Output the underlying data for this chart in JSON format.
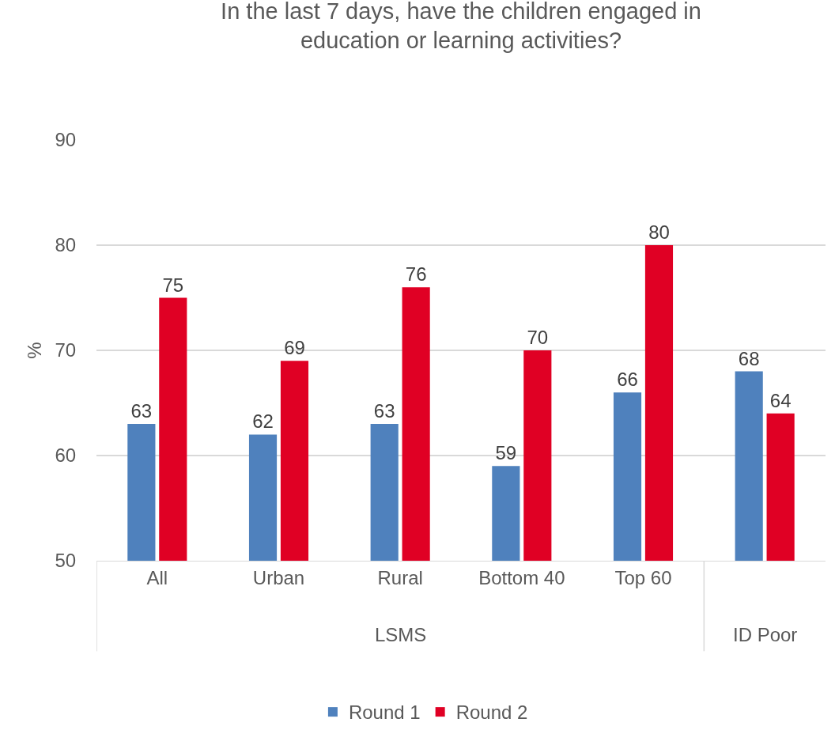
{
  "chart_data": {
    "type": "bar",
    "title": "In the last 7 days, have the children engaged in\neducation or learning activities?",
    "ylabel": "%",
    "categories": [
      "All",
      "Urban",
      "Rural",
      "Bottom 40",
      "Top 60",
      null
    ],
    "series": [
      {
        "name": "Round 1",
        "color": "#4f81bd",
        "values": [
          63,
          62,
          63,
          59,
          66,
          68
        ]
      },
      {
        "name": "Round 2",
        "color": "#e00024",
        "values": [
          75,
          69,
          76,
          70,
          80,
          64
        ]
      }
    ],
    "ylim": [
      50,
      90
    ],
    "yticks": [
      50,
      60,
      70,
      80,
      90
    ],
    "grid": "y",
    "legend": "bottom",
    "data_labels": true,
    "annotations": [
      "LSMS",
      "ID Poor"
    ]
  }
}
